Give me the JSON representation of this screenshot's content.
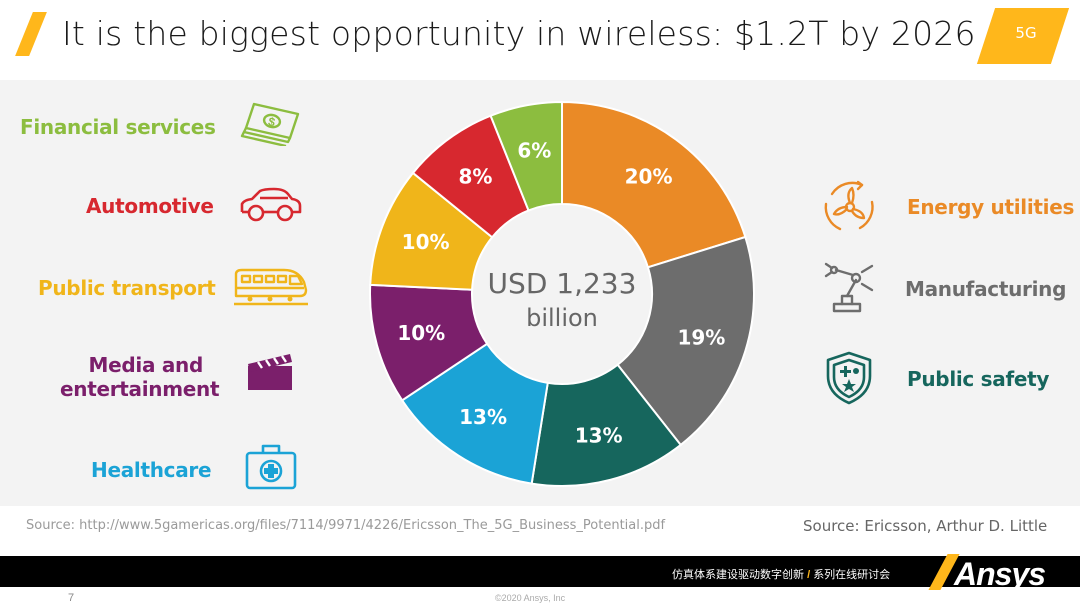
{
  "header": {
    "title": "It is the biggest opportunity in wireless: $1.2T by 2026",
    "tag": "5G"
  },
  "colors": {
    "accent": "#ffb71b",
    "financial": "#8cbd3f",
    "automotive": "#d7282f",
    "transport": "#f0b51a",
    "media": "#7b1f6b",
    "healthcare": "#1ba3d6",
    "energy": "#ea8a26",
    "manufacturing": "#6d6d6d",
    "safety": "#16665d"
  },
  "sectors": {
    "financial": {
      "label": "Financial services",
      "icon": "money-icon"
    },
    "automotive": {
      "label": "Automotive",
      "icon": "car-icon"
    },
    "transport": {
      "label": "Public transport",
      "icon": "train-icon"
    },
    "media": {
      "label_line1": "Media and",
      "label_line2": "entertainment",
      "icon": "clapperboard-icon"
    },
    "healthcare": {
      "label": "Healthcare",
      "icon": "medical-kit-icon"
    },
    "energy": {
      "label": "Energy utilities",
      "icon": "wind-turbine-icon"
    },
    "manufacturing": {
      "label": "Manufacturing",
      "icon": "robot-arm-icon"
    },
    "safety": {
      "label": "Public safety",
      "icon": "shield-icon"
    }
  },
  "chart_data": {
    "type": "pie",
    "style": "donut",
    "center_label_line1": "USD 1,233",
    "center_label_line2": "billion",
    "unit": "%",
    "categories": [
      "Energy utilities",
      "Manufacturing",
      "Public safety",
      "Healthcare",
      "Media and entertainment",
      "Public transport",
      "Automotive",
      "Financial services"
    ],
    "values": [
      20,
      19,
      13,
      13,
      10,
      10,
      8,
      6
    ],
    "data_labels": [
      "20%",
      "19%",
      "13%",
      "13%",
      "10%",
      "10%",
      "8%",
      "6%"
    ],
    "colors": [
      "#ea8a26",
      "#6d6d6d",
      "#16665d",
      "#1ba3d6",
      "#7b1f6b",
      "#f0b51a",
      "#d7282f",
      "#8cbd3f"
    ],
    "start": "12 o'clock",
    "direction": "clockwise"
  },
  "sources": {
    "left": "Source: http://www.5gamericas.org/files/7114/9971/4226/Ericsson_The_5G_Business_Potential.pdf",
    "right": "Source: Ericsson, Arthur D. Little"
  },
  "footer": {
    "series_part1": "仿真体系建设驱动数字创新",
    "separator": "/",
    "series_part2": "系列在线研讨会",
    "brand": "Ansys",
    "page_number": "7",
    "copyright": "©2020 Ansys, Inc"
  }
}
